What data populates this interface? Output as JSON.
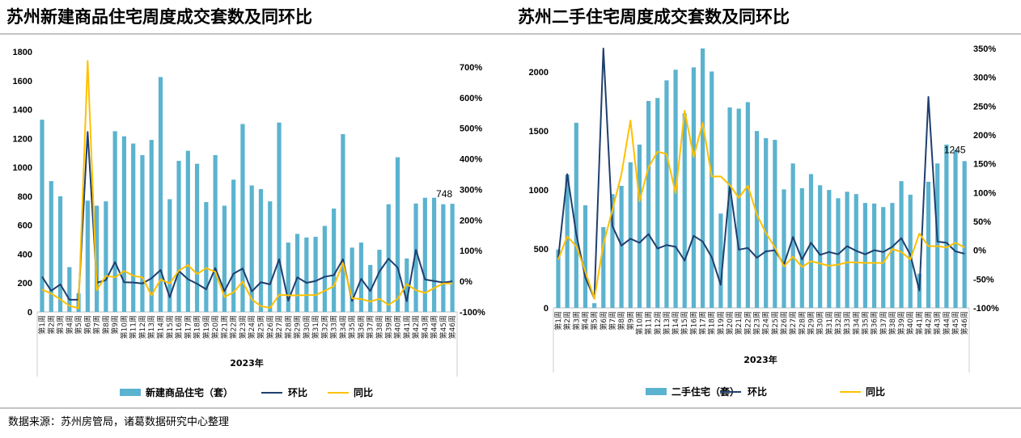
{
  "source_note": "数据来源：苏州房管局，诸葛数据研究中心整理",
  "colors": {
    "bar": "#5BB3CF",
    "mom": "#1F3F6E",
    "yoy": "#FFC000"
  },
  "chart_data": [
    {
      "type": "bar+line",
      "title": "苏州新建商品住宅周度成交套数及同环比",
      "xlabel": "2023年",
      "categories": [
        "第1周",
        "第2周",
        "第3周",
        "第4周",
        "第5周",
        "第6周",
        "第7周",
        "第8周",
        "第9周",
        "第10周",
        "第11周",
        "第12周",
        "第13周",
        "第14周",
        "第15周",
        "第16周",
        "第17周",
        "第18周",
        "第19周",
        "第20周",
        "第21周",
        "第22周",
        "第23周",
        "第24周",
        "第25周",
        "第26周",
        "第27周",
        "第28周",
        "第29周",
        "第30周",
        "第31周",
        "第32周",
        "第33周",
        "第34周",
        "第35周",
        "第36周",
        "第37周",
        "第38周",
        "第39周",
        "第40周",
        "第41周",
        "第42周",
        "第43周",
        "第44周",
        "第45周",
        "第46周"
      ],
      "ylim": [
        0,
        1800
      ],
      "yticks": [
        "0",
        "200",
        "400",
        "600",
        "800",
        "1000",
        "1200",
        "1400",
        "1600",
        "1800"
      ],
      "y2lim": [
        -100,
        750
      ],
      "y2ticks": [
        "-100%",
        "0%",
        "100%",
        "200%",
        "300%",
        "400%",
        "500%",
        "600%",
        "700%"
      ],
      "last_label": "748",
      "legend_placement": "bottom",
      "series": [
        {
          "name": "新建商品住宅（套）",
          "kind": "bar",
          "axis": "left",
          "values": [
            1330,
            905,
            800,
            310,
            130,
            770,
            735,
            765,
            1250,
            1215,
            1165,
            1085,
            1190,
            1625,
            780,
            1045,
            1115,
            1025,
            760,
            1085,
            735,
            915,
            1300,
            875,
            850,
            765,
            1310,
            480,
            540,
            515,
            520,
            595,
            715,
            1230,
            445,
            480,
            325,
            430,
            745,
            1070,
            370,
            750,
            790,
            790,
            745,
            748
          ]
        },
        {
          "name": "环比",
          "kind": "line",
          "axis": "right",
          "values": [
            15,
            -31,
            -10,
            -60,
            -60,
            488,
            -5,
            4,
            63,
            -3,
            -4,
            -7,
            10,
            37,
            -52,
            34,
            7,
            -8,
            -26,
            43,
            -32,
            25,
            42,
            -33,
            -3,
            -10,
            72,
            -63,
            13,
            -5,
            1,
            15,
            20,
            72,
            -64,
            8,
            -32,
            32,
            74,
            45,
            -65,
            103,
            6,
            1,
            -4,
            0
          ]
        },
        {
          "name": "同比",
          "kind": "line",
          "axis": "right",
          "values": [
            -27,
            -40,
            -59,
            -80,
            -88,
            720,
            -29,
            18,
            13,
            34,
            18,
            13,
            -46,
            6,
            -7,
            35,
            53,
            24,
            43,
            31,
            -51,
            -36,
            -1,
            -59,
            -81,
            -87,
            -44,
            -46,
            -46,
            -45,
            -45,
            -31,
            -16,
            60,
            -55,
            -58,
            -66,
            -57,
            -77,
            -57,
            -9,
            -29,
            -38,
            -22,
            -7,
            -7
          ]
        }
      ]
    },
    {
      "type": "bar+line",
      "title": "苏州二手住宅周度成交套数及同环比",
      "xlabel": "2023年",
      "categories": [
        "第1周",
        "第2周",
        "第3周",
        "第4周",
        "第5周",
        "第6周",
        "第7周",
        "第8周",
        "第9周",
        "第10周",
        "第11周",
        "第12周",
        "第13周",
        "第14周",
        "第15周",
        "第16周",
        "第17周",
        "第18周",
        "第19周",
        "第20周",
        "第21周",
        "第22周",
        "第23周",
        "第24周",
        "第25周",
        "第26周",
        "第27周",
        "第28周",
        "第29周",
        "第30周",
        "第31周",
        "第32周",
        "第33周",
        "第34周",
        "第35周",
        "第36周",
        "第37周",
        "第38周",
        "第39周",
        "第40周",
        "第41周",
        "第42周",
        "第43周",
        "第44周",
        "第45周",
        "第46周"
      ],
      "ylim": [
        0,
        2200
      ],
      "yticks": [
        "0",
        "500",
        "1000",
        "1500",
        "2000"
      ],
      "y2lim": [
        -100,
        350
      ],
      "y2ticks": [
        "-100%",
        "-50%",
        "0%",
        "50%",
        "100%",
        "150%",
        "200%",
        "250%",
        "300%",
        "350%"
      ],
      "last_label": "1245",
      "legend_placement": "bottom",
      "series": [
        {
          "name": "二手住宅（套）",
          "kind": "bar",
          "axis": "left",
          "values": [
            495,
            1130,
            1570,
            870,
            40,
            685,
            965,
            1035,
            1235,
            1385,
            1755,
            1780,
            1930,
            2020,
            1650,
            2040,
            2200,
            2005,
            800,
            1700,
            1690,
            1745,
            1500,
            1440,
            1425,
            1005,
            1225,
            1015,
            1135,
            1040,
            1000,
            930,
            985,
            965,
            890,
            885,
            855,
            890,
            1075,
            960,
            290,
            1070,
            1225,
            1385,
            1340,
            1245
          ]
        },
        {
          "name": "环比",
          "kind": "line",
          "axis": "right",
          "values": [
            -14,
            132,
            28,
            -47,
            -84,
            350,
            42,
            8,
            20,
            13,
            28,
            3,
            9,
            6,
            -18,
            25,
            15,
            -12,
            -60,
            112,
            1,
            4,
            -13,
            -2,
            0,
            -25,
            23,
            -16,
            13,
            -8,
            -3,
            -7,
            7,
            -1,
            -7,
            0,
            -3,
            6,
            21,
            -8,
            -70,
            266,
            15,
            13,
            -2,
            -6
          ]
        },
        {
          "name": "同比",
          "kind": "line",
          "axis": "right",
          "values": [
            -16,
            24,
            7,
            -37,
            -84,
            10,
            70,
            132,
            225,
            85,
            144,
            171,
            167,
            99,
            242,
            162,
            221,
            128,
            128,
            113,
            91,
            112,
            62,
            30,
            5,
            -28,
            -11,
            -29,
            -19,
            -23,
            -27,
            -25,
            -21,
            -21,
            -22,
            -22,
            -22,
            2,
            -3,
            -16,
            29,
            7,
            7,
            5,
            13,
            5
          ]
        }
      ]
    }
  ]
}
